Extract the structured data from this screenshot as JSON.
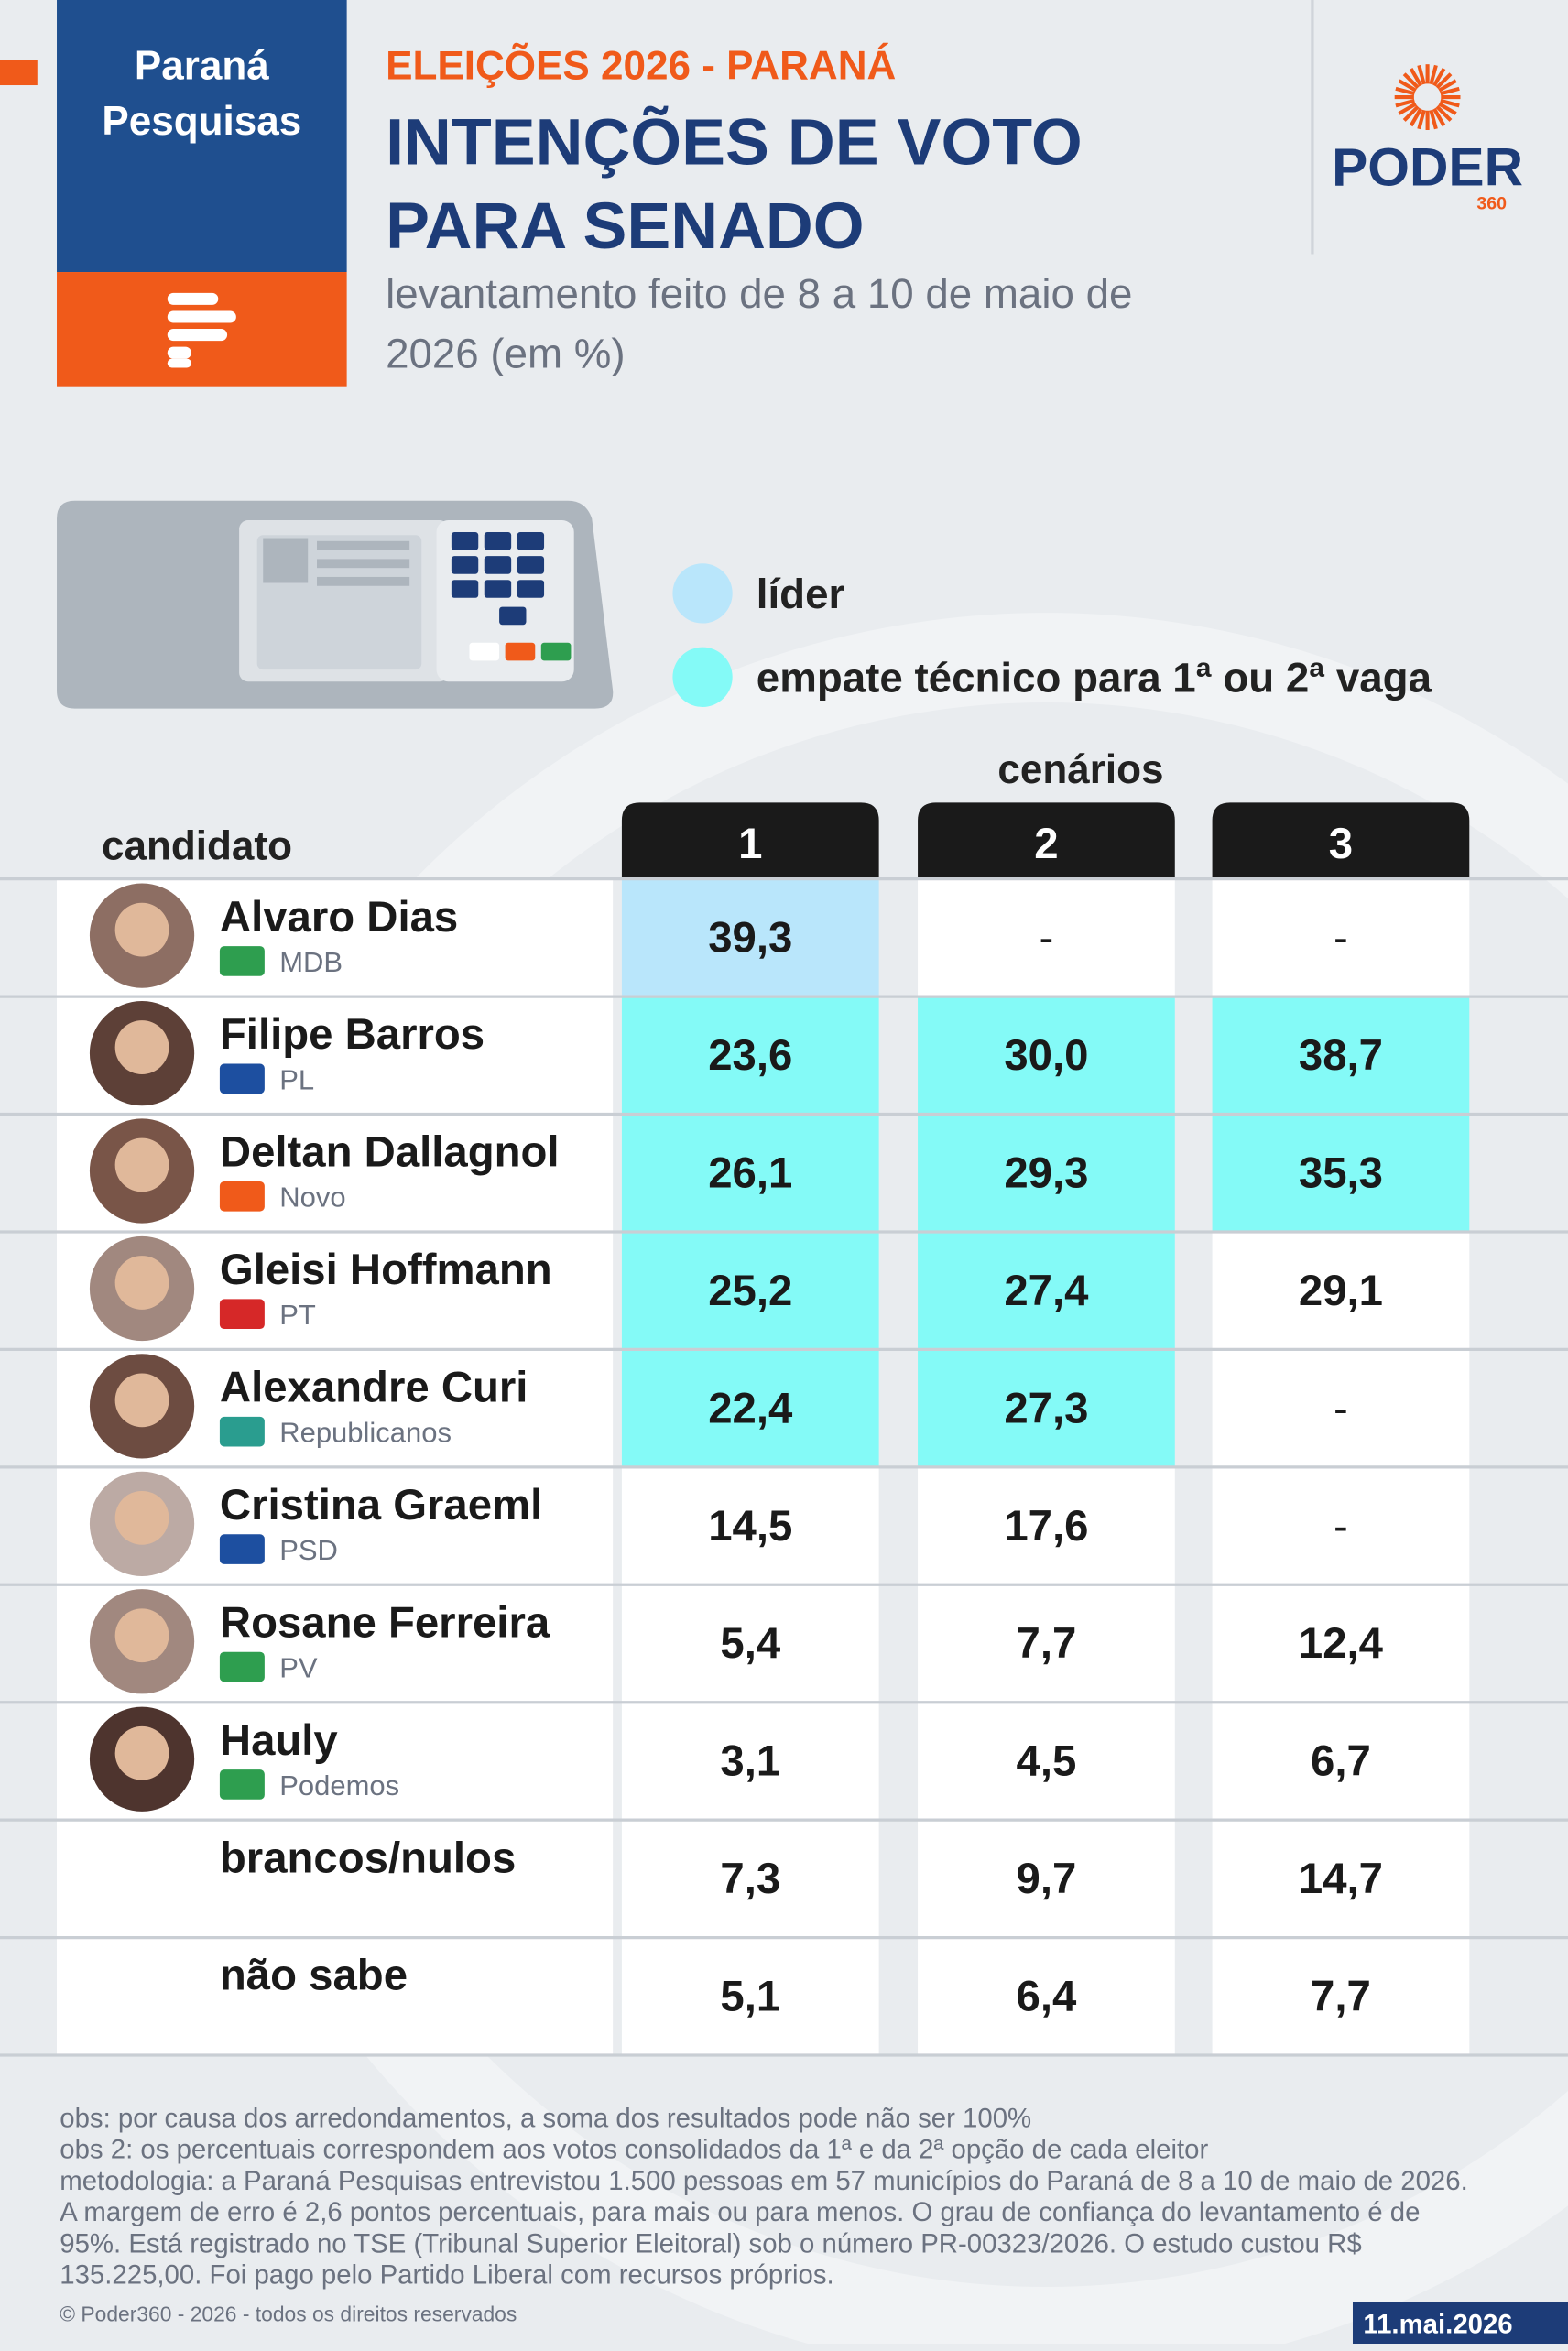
{
  "header": {
    "brand": [
      "Paraná",
      "Pesquisas"
    ],
    "kicker": "ELEIÇÕES 2026 - PARANÁ",
    "title": [
      "INTENÇÕES DE VOTO",
      "PARA SENADO"
    ],
    "subtitle": [
      "levantamento feito de 8 a 10 de maio de",
      "2026 (em %)"
    ],
    "logo": "PODER",
    "logo_sub": "360"
  },
  "legend": [
    {
      "label": "líder",
      "color": "#b9e6fb"
    },
    {
      "label": "empate técnico para 1ª ou 2ª vaga",
      "color": "#84faf7"
    }
  ],
  "table": {
    "group_label": "cenários",
    "candidate_header": "candidato",
    "scenarios": [
      "1",
      "2",
      "3"
    ],
    "rows": [
      {
        "name": "Alvaro Dias",
        "party": "MDB",
        "values": [
          "39,3",
          "-",
          "-"
        ],
        "colors": [
          "#b9e6fb",
          "#ffffff",
          "#ffffff"
        ]
      },
      {
        "name": "Filipe Barros",
        "party": "PL",
        "values": [
          "23,6",
          "30,0",
          "38,7"
        ],
        "colors": [
          "#84faf7",
          "#84faf7",
          "#84faf7"
        ]
      },
      {
        "name": "Deltan Dallagnol",
        "party": "Novo",
        "values": [
          "26,1",
          "29,3",
          "35,3"
        ],
        "colors": [
          "#84faf7",
          "#84faf7",
          "#84faf7"
        ]
      },
      {
        "name": "Gleisi Hoffmann",
        "party": "PT",
        "values": [
          "25,2",
          "27,4",
          "29,1"
        ],
        "colors": [
          "#84faf7",
          "#84faf7",
          "#ffffff"
        ]
      },
      {
        "name": "Alexandre Curi",
        "party": "Republicanos",
        "values": [
          "22,4",
          "27,3",
          "-"
        ],
        "colors": [
          "#84faf7",
          "#84faf7",
          "#ffffff"
        ]
      },
      {
        "name": "Cristina Graeml",
        "party": "PSD",
        "values": [
          "14,5",
          "17,6",
          "-"
        ],
        "colors": [
          "#ffffff",
          "#ffffff",
          "#ffffff"
        ]
      },
      {
        "name": "Rosane Ferreira",
        "party": "PV",
        "values": [
          "5,4",
          "7,7",
          "12,4"
        ],
        "colors": [
          "#ffffff",
          "#ffffff",
          "#ffffff"
        ]
      },
      {
        "name": "Hauly",
        "party": "Podemos",
        "values": [
          "3,1",
          "4,5",
          "6,7"
        ],
        "colors": [
          "#ffffff",
          "#ffffff",
          "#ffffff"
        ]
      },
      {
        "name": "brancos/nulos",
        "values": [
          "7,3",
          "9,7",
          "14,7"
        ],
        "colors": [
          "#ffffff",
          "#ffffff",
          "#ffffff"
        ]
      },
      {
        "name": "não sabe",
        "values": [
          "5,1",
          "6,4",
          "7,7"
        ],
        "colors": [
          "#ffffff",
          "#ffffff",
          "#ffffff"
        ]
      }
    ]
  },
  "notes": [
    "obs: por causa dos arredondamentos, a soma dos resultados pode não ser 100%",
    "obs 2: os percentuais correspondem aos votos consolidados da 1ª e da 2ª opção de cada eleitor",
    "metodologia: a Paraná Pesquisas entrevistou 1.500 pessoas em 57 municípios do Paraná de 8 a 10 de maio de 2026.",
    "A margem de erro é 2,6 pontos percentuais, para mais ou para menos. O grau de confiança do levantamento é de",
    "95%. Está registrado no TSE (Tribunal Superior Eleitoral) sob o número PR-00323/2026. O estudo custou R$",
    "135.225,00. Foi pago pelo Partido Liberal com recursos próprios."
  ],
  "footer": {
    "copyright": "© Poder360 - 2026 - todos os direitos reservados",
    "date": "11.mai.2026"
  }
}
